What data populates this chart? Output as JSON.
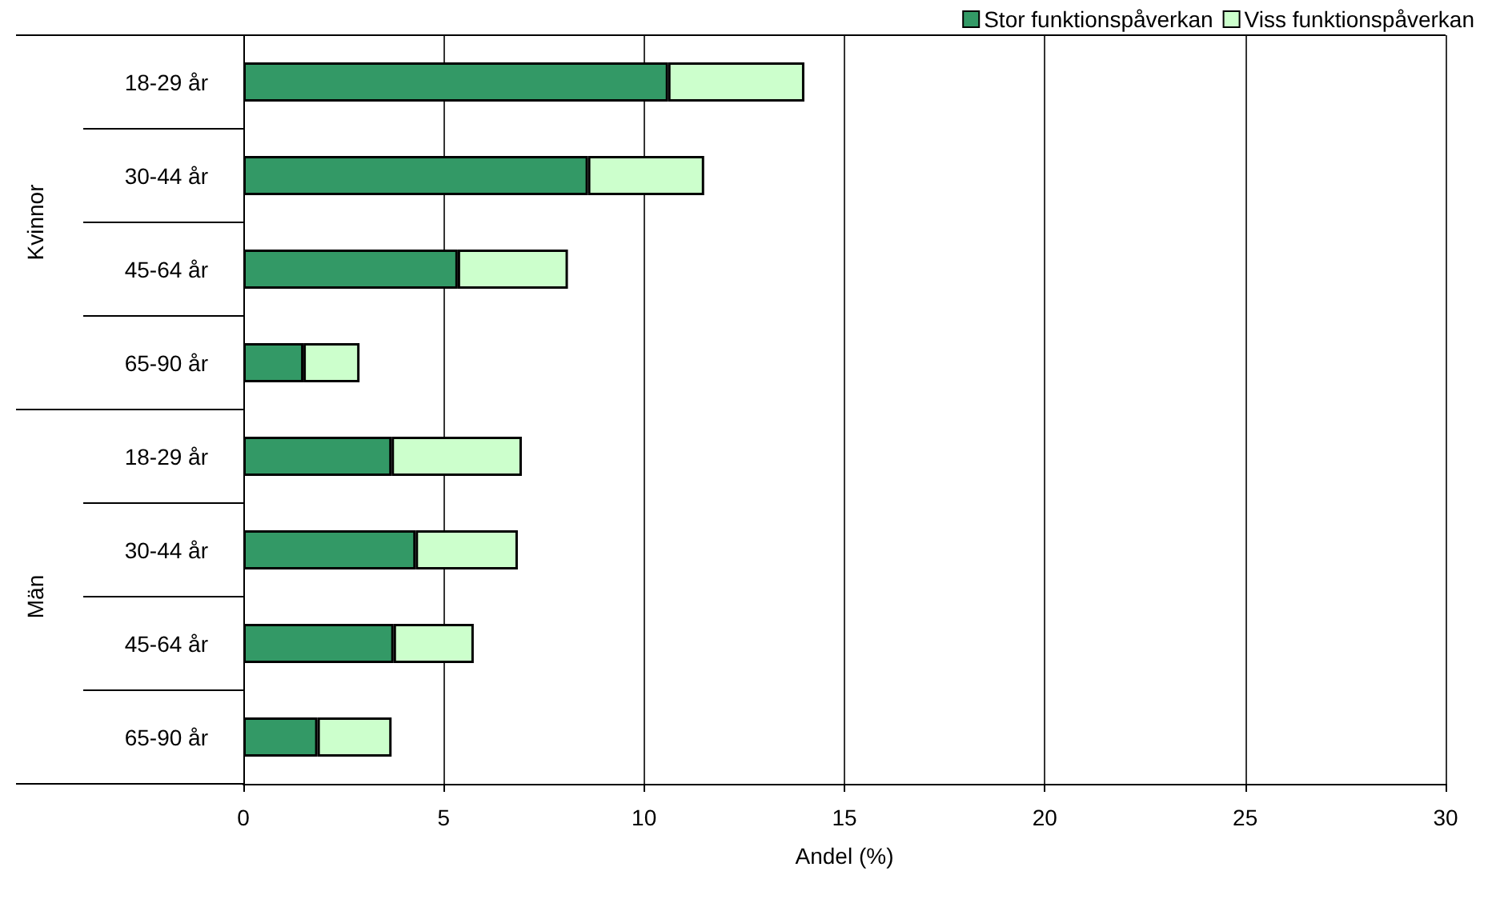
{
  "chart_data": {
    "type": "bar",
    "orientation": "horizontal",
    "stacked": true,
    "categories": [
      "18-29 år",
      "30-44 år",
      "45-64 år",
      "65-90 år",
      "18-29 år",
      "30-44 år",
      "45-64 år",
      "65-90 år"
    ],
    "series": [
      {
        "name": "Stor funktionspåverkan",
        "color": "#339966",
        "values": [
          10.6,
          8.6,
          5.35,
          1.5,
          3.7,
          4.3,
          3.75,
          1.85
        ]
      },
      {
        "name": "Viss funktionspåverkan",
        "color": "#ccffcc",
        "values": [
          3.4,
          2.9,
          2.75,
          1.4,
          3.25,
          2.55,
          2.0,
          1.85
        ]
      }
    ],
    "xlabel": "Andel (%)",
    "xlim": [
      0,
      30
    ],
    "xticks": [
      0,
      5,
      10,
      15,
      20,
      25,
      30
    ],
    "annotations": [
      "Kvinnor",
      "Män"
    ],
    "grid": "x",
    "legend": "top right"
  }
}
